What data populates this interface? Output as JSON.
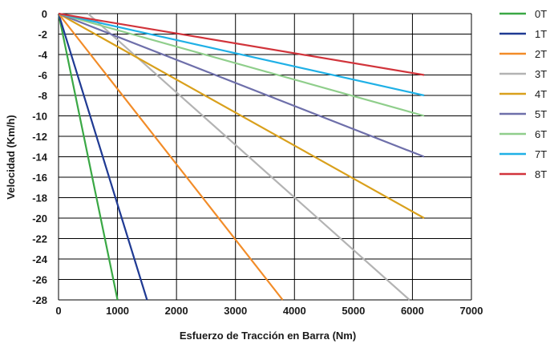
{
  "chart_data": {
    "type": "line",
    "title": "",
    "xlabel": "Esfuerzo de Tracción en Barra (Nm)",
    "ylabel": "Velocidad (Km/h)",
    "xlim": [
      0,
      7000
    ],
    "ylim": [
      -28,
      0
    ],
    "xticks": [
      "0",
      "1000",
      "2000",
      "3000",
      "4000",
      "5000",
      "6000",
      "7000"
    ],
    "yticks": [
      "0",
      "-2",
      "-4",
      "-6",
      "-8",
      "-10",
      "-12",
      "-14",
      "-16",
      "-18",
      "-20",
      "-22",
      "-24",
      "-26",
      "-28"
    ],
    "grid": true,
    "legend_position": "right",
    "series": [
      {
        "name": "0T",
        "color": "#3aa845",
        "x": [
          0,
          1000
        ],
        "y": [
          0,
          -28
        ]
      },
      {
        "name": "1T",
        "color": "#1f3a93",
        "x": [
          0,
          1500
        ],
        "y": [
          0,
          -28
        ]
      },
      {
        "name": "2T",
        "color": "#f28c28",
        "x": [
          0,
          3800
        ],
        "y": [
          0,
          -28
        ]
      },
      {
        "name": "3T",
        "color": "#b3b3b3",
        "x": [
          500,
          5950
        ],
        "y": [
          0,
          -28
        ]
      },
      {
        "name": "4T",
        "color": "#d9a01c",
        "x": [
          0,
          6200
        ],
        "y": [
          0,
          -20
        ]
      },
      {
        "name": "5T",
        "color": "#6e6faa",
        "x": [
          0,
          6200
        ],
        "y": [
          0,
          -14
        ]
      },
      {
        "name": "6T",
        "color": "#8fce8b",
        "x": [
          0,
          6200
        ],
        "y": [
          0,
          -10
        ]
      },
      {
        "name": "7T",
        "color": "#1fb0e6",
        "x": [
          0,
          6200
        ],
        "y": [
          0,
          -8
        ]
      },
      {
        "name": "8T",
        "color": "#d1343b",
        "x": [
          0,
          6200
        ],
        "y": [
          0,
          -6
        ]
      }
    ]
  }
}
